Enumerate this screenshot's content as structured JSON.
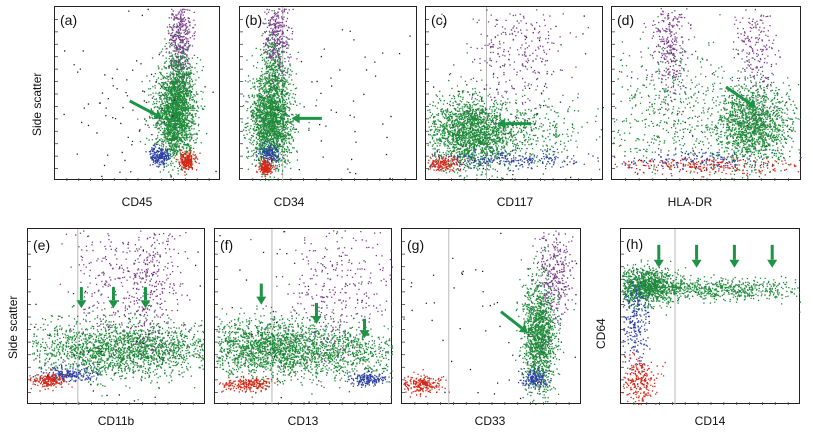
{
  "chart_data": [
    {
      "id": "a",
      "type": "scatter",
      "panel_label": "(a)",
      "xlabel": "CD45",
      "ylabel": "Side scatter",
      "populations": [
        {
          "color": "#1f8a3a",
          "cx": 0.72,
          "cy": 0.62,
          "sx": 0.06,
          "sy": 0.13,
          "n": 1800
        },
        {
          "color": "#1f8a3a",
          "cx": 0.74,
          "cy": 0.42,
          "sx": 0.04,
          "sy": 0.12,
          "n": 500
        },
        {
          "color": "#7a3d8c",
          "cx": 0.75,
          "cy": 0.17,
          "sx": 0.035,
          "sy": 0.12,
          "n": 350
        },
        {
          "color": "#2d3fa6",
          "cx": 0.63,
          "cy": 0.85,
          "sx": 0.03,
          "sy": 0.025,
          "n": 200
        },
        {
          "color": "#d62818",
          "cx": 0.79,
          "cy": 0.88,
          "sx": 0.025,
          "sy": 0.025,
          "n": 220
        },
        {
          "color": "#222222",
          "cx": 0.45,
          "cy": 0.6,
          "sx": 0.22,
          "sy": 0.25,
          "n": 90
        }
      ],
      "arrows": [
        {
          "x1": 0.45,
          "y1": 0.54,
          "x2": 0.65,
          "y2": 0.64
        }
      ]
    },
    {
      "id": "b",
      "type": "scatter",
      "panel_label": "(b)",
      "xlabel": "CD34",
      "ylabel": "",
      "populations": [
        {
          "color": "#1f8a3a",
          "cx": 0.17,
          "cy": 0.65,
          "sx": 0.06,
          "sy": 0.13,
          "n": 1800
        },
        {
          "color": "#1f8a3a",
          "cx": 0.19,
          "cy": 0.4,
          "sx": 0.04,
          "sy": 0.13,
          "n": 450
        },
        {
          "color": "#7a3d8c",
          "cx": 0.2,
          "cy": 0.15,
          "sx": 0.035,
          "sy": 0.12,
          "n": 300
        },
        {
          "color": "#2d3fa6",
          "cx": 0.16,
          "cy": 0.84,
          "sx": 0.03,
          "sy": 0.03,
          "n": 160
        },
        {
          "color": "#d62818",
          "cx": 0.14,
          "cy": 0.92,
          "sx": 0.02,
          "sy": 0.02,
          "n": 180
        },
        {
          "color": "#222222",
          "cx": 0.5,
          "cy": 0.55,
          "sx": 0.25,
          "sy": 0.3,
          "n": 60
        }
      ],
      "arrows": [
        {
          "x1": 0.46,
          "y1": 0.64,
          "x2": 0.29,
          "y2": 0.64
        }
      ]
    },
    {
      "id": "c",
      "type": "scatter",
      "panel_label": "(c)",
      "xlabel": "CD117",
      "ylabel": "",
      "populations": [
        {
          "color": "#1f8a3a",
          "cx": 0.24,
          "cy": 0.72,
          "sx": 0.11,
          "sy": 0.1,
          "n": 1700
        },
        {
          "color": "#1f8a3a",
          "cx": 0.5,
          "cy": 0.72,
          "sx": 0.2,
          "sy": 0.1,
          "n": 500
        },
        {
          "color": "#7a3d8c",
          "cx": 0.5,
          "cy": 0.25,
          "sx": 0.15,
          "sy": 0.18,
          "n": 280
        },
        {
          "color": "#2d3fa6",
          "cx": 0.45,
          "cy": 0.87,
          "sx": 0.2,
          "sy": 0.025,
          "n": 240
        },
        {
          "color": "#d62818",
          "cx": 0.1,
          "cy": 0.9,
          "sx": 0.05,
          "sy": 0.02,
          "n": 170
        },
        {
          "color": "#222222",
          "cx": 0.55,
          "cy": 0.55,
          "sx": 0.3,
          "sy": 0.3,
          "n": 60
        }
      ],
      "arrows": [
        {
          "x1": 0.59,
          "y1": 0.67,
          "x2": 0.4,
          "y2": 0.67
        }
      ]
    },
    {
      "id": "d",
      "type": "scatter",
      "panel_label": "(d)",
      "xlabel": "HLA-DR",
      "ylabel": "",
      "populations": [
        {
          "color": "#1f8a3a",
          "cx": 0.74,
          "cy": 0.67,
          "sx": 0.1,
          "sy": 0.11,
          "n": 1500
        },
        {
          "color": "#1f8a3a",
          "cx": 0.3,
          "cy": 0.6,
          "sx": 0.18,
          "sy": 0.2,
          "n": 500
        },
        {
          "color": "#7a3d8c",
          "cx": 0.3,
          "cy": 0.2,
          "sx": 0.05,
          "sy": 0.15,
          "n": 300
        },
        {
          "color": "#7a3d8c",
          "cx": 0.75,
          "cy": 0.25,
          "sx": 0.05,
          "sy": 0.15,
          "n": 200
        },
        {
          "color": "#d62818",
          "cx": 0.5,
          "cy": 0.91,
          "sx": 0.25,
          "sy": 0.025,
          "n": 260
        },
        {
          "color": "#2d3fa6",
          "cx": 0.42,
          "cy": 0.87,
          "sx": 0.2,
          "sy": 0.03,
          "n": 160
        },
        {
          "color": "#222222",
          "cx": 0.5,
          "cy": 0.55,
          "sx": 0.3,
          "sy": 0.3,
          "n": 40
        }
      ],
      "arrows": [
        {
          "x1": 0.6,
          "y1": 0.46,
          "x2": 0.76,
          "y2": 0.58
        }
      ]
    },
    {
      "id": "e",
      "type": "scatter",
      "panel_label": "(e)",
      "xlabel": "CD11b",
      "ylabel": "Side scatter",
      "populations": [
        {
          "color": "#1f8a3a",
          "cx": 0.52,
          "cy": 0.68,
          "sx": 0.26,
          "sy": 0.08,
          "n": 2000
        },
        {
          "color": "#7a3d8c",
          "cx": 0.7,
          "cy": 0.3,
          "sx": 0.08,
          "sy": 0.2,
          "n": 350
        },
        {
          "color": "#7a3d8c",
          "cx": 0.42,
          "cy": 0.25,
          "sx": 0.1,
          "sy": 0.2,
          "n": 200
        },
        {
          "color": "#2d3fa6",
          "cx": 0.22,
          "cy": 0.82,
          "sx": 0.08,
          "sy": 0.02,
          "n": 200
        },
        {
          "color": "#d62818",
          "cx": 0.12,
          "cy": 0.86,
          "sx": 0.05,
          "sy": 0.02,
          "n": 200
        },
        {
          "color": "#222222",
          "cx": 0.5,
          "cy": 0.55,
          "sx": 0.3,
          "sy": 0.3,
          "n": 50
        }
      ],
      "arrows": [
        {
          "x1": 0.3,
          "y1": 0.33,
          "x2": 0.3,
          "y2": 0.45
        },
        {
          "x1": 0.48,
          "y1": 0.33,
          "x2": 0.48,
          "y2": 0.45
        },
        {
          "x1": 0.66,
          "y1": 0.33,
          "x2": 0.66,
          "y2": 0.45
        }
      ]
    },
    {
      "id": "f",
      "type": "scatter",
      "panel_label": "(f)",
      "xlabel": "CD13",
      "ylabel": "",
      "populations": [
        {
          "color": "#1f8a3a",
          "cx": 0.3,
          "cy": 0.67,
          "sx": 0.2,
          "sy": 0.08,
          "n": 1700
        },
        {
          "color": "#1f8a3a",
          "cx": 0.72,
          "cy": 0.7,
          "sx": 0.2,
          "sy": 0.08,
          "n": 700
        },
        {
          "color": "#7a3d8c",
          "cx": 0.7,
          "cy": 0.35,
          "sx": 0.18,
          "sy": 0.22,
          "n": 350
        },
        {
          "color": "#2d3fa6",
          "cx": 0.85,
          "cy": 0.85,
          "sx": 0.05,
          "sy": 0.02,
          "n": 160
        },
        {
          "color": "#d62818",
          "cx": 0.18,
          "cy": 0.88,
          "sx": 0.07,
          "sy": 0.02,
          "n": 220
        },
        {
          "color": "#222222",
          "cx": 0.5,
          "cy": 0.55,
          "sx": 0.3,
          "sy": 0.3,
          "n": 40
        }
      ],
      "arrows": [
        {
          "x1": 0.26,
          "y1": 0.31,
          "x2": 0.26,
          "y2": 0.43
        },
        {
          "x1": 0.57,
          "y1": 0.42,
          "x2": 0.57,
          "y2": 0.54
        },
        {
          "x1": 0.84,
          "y1": 0.51,
          "x2": 0.84,
          "y2": 0.62
        }
      ]
    },
    {
      "id": "g",
      "type": "scatter",
      "panel_label": "(g)",
      "xlabel": "CD33",
      "ylabel": "",
      "populations": [
        {
          "color": "#1f8a3a",
          "cx": 0.76,
          "cy": 0.6,
          "sx": 0.045,
          "sy": 0.16,
          "n": 1400
        },
        {
          "color": "#7a3d8c",
          "cx": 0.84,
          "cy": 0.22,
          "sx": 0.05,
          "sy": 0.15,
          "n": 320
        },
        {
          "color": "#2d3fa6",
          "cx": 0.74,
          "cy": 0.85,
          "sx": 0.04,
          "sy": 0.025,
          "n": 160
        },
        {
          "color": "#d62818",
          "cx": 0.11,
          "cy": 0.88,
          "sx": 0.06,
          "sy": 0.025,
          "n": 230
        },
        {
          "color": "#222222",
          "cx": 0.5,
          "cy": 0.55,
          "sx": 0.3,
          "sy": 0.3,
          "n": 60
        }
      ],
      "arrows": [
        {
          "x1": 0.55,
          "y1": 0.47,
          "x2": 0.7,
          "y2": 0.59
        }
      ]
    },
    {
      "id": "h",
      "type": "scatter",
      "panel_label": "(h)",
      "xlabel": "CD14",
      "ylabel": "CD64",
      "populations": [
        {
          "color": "#1f8a3a",
          "cx": 0.14,
          "cy": 0.32,
          "sx": 0.09,
          "sy": 0.05,
          "n": 1100
        },
        {
          "color": "#1f8a3a",
          "cx": 0.55,
          "cy": 0.34,
          "sx": 0.23,
          "sy": 0.03,
          "n": 600
        },
        {
          "color": "#2d3fa6",
          "cx": 0.08,
          "cy": 0.52,
          "sx": 0.04,
          "sy": 0.12,
          "n": 250
        },
        {
          "color": "#d62818",
          "cx": 0.09,
          "cy": 0.85,
          "sx": 0.05,
          "sy": 0.07,
          "n": 250
        }
      ],
      "arrows": [
        {
          "x1": 0.21,
          "y1": 0.09,
          "x2": 0.21,
          "y2": 0.22
        },
        {
          "x1": 0.42,
          "y1": 0.09,
          "x2": 0.42,
          "y2": 0.22
        },
        {
          "x1": 0.63,
          "y1": 0.09,
          "x2": 0.63,
          "y2": 0.22
        },
        {
          "x1": 0.84,
          "y1": 0.09,
          "x2": 0.84,
          "y2": 0.22
        }
      ]
    }
  ]
}
